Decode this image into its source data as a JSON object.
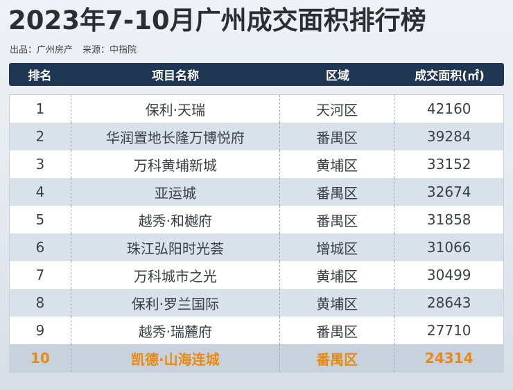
{
  "title": "2023年7-10月广州成交面积排行榜",
  "meta": {
    "source_label": "出品：广州房产",
    "data_label": "来源：中指院"
  },
  "table": {
    "headers": [
      "排名",
      "项目名称",
      "区域",
      "成交面积(㎡)"
    ],
    "rows": [
      {
        "rank": "1",
        "name": "保利·天瑞",
        "district": "天河区",
        "area": "42160"
      },
      {
        "rank": "2",
        "name": "华润置地长隆万博悦府",
        "district": "番禺区",
        "area": "39284"
      },
      {
        "rank": "3",
        "name": "万科黄埔新城",
        "district": "黄埔区",
        "area": "33152"
      },
      {
        "rank": "4",
        "name": "亚运城",
        "district": "番禺区",
        "area": "32674"
      },
      {
        "rank": "5",
        "name": "越秀·和樾府",
        "district": "番禺区",
        "area": "31858"
      },
      {
        "rank": "6",
        "name": "珠江弘阳时光荟",
        "district": "增城区",
        "area": "31066"
      },
      {
        "rank": "7",
        "name": "万科城市之光",
        "district": "黄埔区",
        "area": "30499"
      },
      {
        "rank": "8",
        "name": "保利·罗兰国际",
        "district": "黄埔区",
        "area": "28643"
      },
      {
        "rank": "9",
        "name": "越秀·瑞麓府",
        "district": "番禺区",
        "area": "27710"
      },
      {
        "rank": "10",
        "name": "凯德·山海连城",
        "district": "番禺区",
        "area": "24314"
      }
    ],
    "highlight_row": 10
  },
  "colors": {
    "header_bg": "#1f3752",
    "highlight_text": "#e98a10",
    "row_alt": "#d9e2ea"
  }
}
